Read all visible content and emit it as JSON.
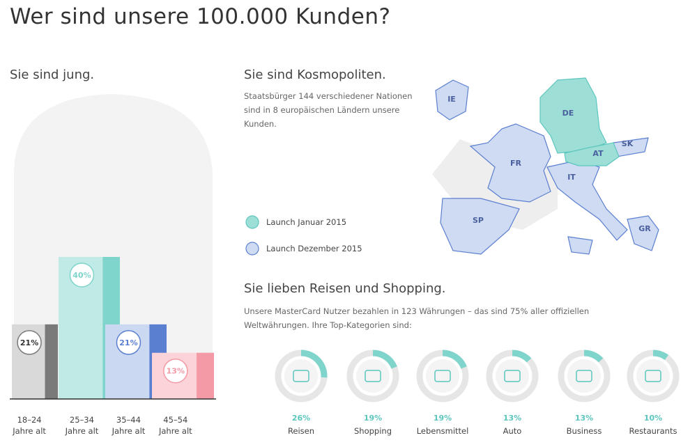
{
  "title": "Wer sind unsere 100.000 Kunden?",
  "chart_data": [
    {
      "type": "bar",
      "title": "Sie sind jung.",
      "categories": [
        "18–24\nJahre alt",
        "25–34\nJahre alt",
        "35–44\nJahre alt",
        "45–54\nJahre alt"
      ],
      "values": [
        21,
        40,
        21,
        13
      ],
      "value_labels": [
        "21%",
        "40%",
        "21%",
        "13%"
      ],
      "colors": [
        "#d9d9d9",
        "#bfeae5",
        "#cbd8f2",
        "#fbd3d8"
      ],
      "edge_colors": [
        "#7a7a7a",
        "#7fd4cb",
        "#5b7fd0",
        "#f39aa6"
      ]
    },
    {
      "type": "donut",
      "title": "Sie lieben Reisen und Shopping.",
      "text": "Unsere MasterCard Nutzer bezahlen in 123 Währungen – das sind 75% aller offiziellen Weltwährungen. Ihre Top-Kategorien sind:",
      "categories": [
        "Reisen",
        "Shopping",
        "Lebensmittel",
        "Auto",
        "Business",
        "Restaurants"
      ],
      "values": [
        26,
        19,
        19,
        13,
        13,
        10
      ],
      "value_labels": [
        "26%",
        "19%",
        "19%",
        "13%",
        "13%",
        "10%"
      ],
      "color": "#7fd4cb"
    }
  ],
  "map": {
    "title": "Sie sind Kosmopoliten.",
    "text": "Staatsbürger 144 verschiedener Nationen sind in 8 europäischen Ländern unsere Kunden.",
    "countries": [
      "IE",
      "DE",
      "SK",
      "AT",
      "FR",
      "IT",
      "SP",
      "GR"
    ],
    "legend": [
      {
        "label": "Launch Januar 2015",
        "color": "#9ddfd7"
      },
      {
        "label": "Launch Dezember 2015",
        "color": "#cfdaf3"
      }
    ]
  }
}
